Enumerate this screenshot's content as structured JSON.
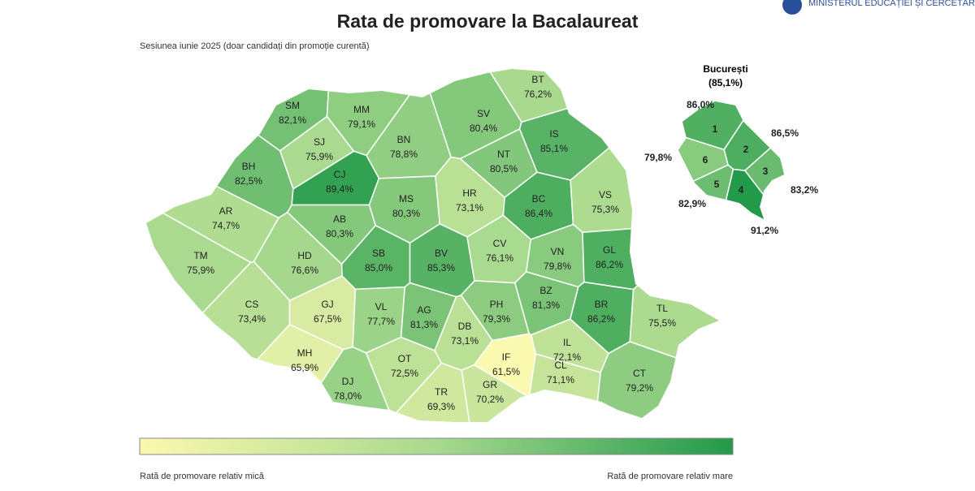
{
  "header": {
    "title": "Rata de promovare la Bacalaureat",
    "subtitle": "Sesiunea iunie 2025 (doar candidați din promoție curentă)",
    "logo_text": "MINISTERUL EDUCAȚIEI ȘI CERCETĂRII"
  },
  "counties": [
    {
      "code": "SM",
      "value": 82.1,
      "label": "82,1%"
    },
    {
      "code": "MM",
      "value": 79.1,
      "label": "79,1%"
    },
    {
      "code": "BT",
      "value": 76.2,
      "label": "76,2%"
    },
    {
      "code": "SV",
      "value": 80.4,
      "label": "80,4%"
    },
    {
      "code": "BN",
      "value": 78.8,
      "label": "78,8%"
    },
    {
      "code": "SJ",
      "value": 75.9,
      "label": "75,9%"
    },
    {
      "code": "IS",
      "value": 85.1,
      "label": "85,1%"
    },
    {
      "code": "BH",
      "value": 82.5,
      "label": "82,5%"
    },
    {
      "code": "CJ",
      "value": 89.4,
      "label": "89,4%"
    },
    {
      "code": "NT",
      "value": 80.5,
      "label": "80,5%"
    },
    {
      "code": "HR",
      "value": 73.1,
      "label": "73,1%"
    },
    {
      "code": "BC",
      "value": 86.4,
      "label": "86,4%"
    },
    {
      "code": "VS",
      "value": 75.3,
      "label": "75,3%"
    },
    {
      "code": "MS",
      "value": 80.3,
      "label": "80,3%"
    },
    {
      "code": "AR",
      "value": 74.7,
      "label": "74,7%"
    },
    {
      "code": "AB",
      "value": 80.3,
      "label": "80,3%"
    },
    {
      "code": "TM",
      "value": 75.9,
      "label": "75,9%"
    },
    {
      "code": "HD",
      "value": 76.6,
      "label": "76,6%"
    },
    {
      "code": "SB",
      "value": 85.0,
      "label": "85,0%"
    },
    {
      "code": "BV",
      "value": 85.3,
      "label": "85,3%"
    },
    {
      "code": "CV",
      "value": 76.1,
      "label": "76,1%"
    },
    {
      "code": "VN",
      "value": 79.8,
      "label": "79,8%"
    },
    {
      "code": "GL",
      "value": 86.2,
      "label": "86,2%"
    },
    {
      "code": "CS",
      "value": 73.4,
      "label": "73,4%"
    },
    {
      "code": "GJ",
      "value": 67.5,
      "label": "67,5%"
    },
    {
      "code": "VL",
      "value": 77.7,
      "label": "77,7%"
    },
    {
      "code": "AG",
      "value": 81.3,
      "label": "81,3%"
    },
    {
      "code": "BZ",
      "value": 81.3,
      "label": "81,3%"
    },
    {
      "code": "BR",
      "value": 86.2,
      "label": "86,2%"
    },
    {
      "code": "PH",
      "value": 79.3,
      "label": "79,3%"
    },
    {
      "code": "DB",
      "value": 73.1,
      "label": "73,1%"
    },
    {
      "code": "TL",
      "value": 75.5,
      "label": "75,5%"
    },
    {
      "code": "MH",
      "value": 65.9,
      "label": "65,9%"
    },
    {
      "code": "OT",
      "value": 72.5,
      "label": "72,5%"
    },
    {
      "code": "IF",
      "value": 61.5,
      "label": "61,5%"
    },
    {
      "code": "IL",
      "value": 72.1,
      "label": "72,1%"
    },
    {
      "code": "DJ",
      "value": 78.0,
      "label": "78,0%"
    },
    {
      "code": "TR",
      "value": 69.3,
      "label": "69,3%"
    },
    {
      "code": "GR",
      "value": 70.2,
      "label": "70,2%"
    },
    {
      "code": "CL",
      "value": 71.1,
      "label": "71,1%"
    },
    {
      "code": "CT",
      "value": 79.2,
      "label": "79,2%"
    }
  ],
  "bucharest": {
    "name": "București",
    "value": 85.1,
    "label": "(85,1%)",
    "sectors": [
      {
        "number": 1,
        "value": 86.0,
        "label": "86,0%"
      },
      {
        "number": 2,
        "value": 86.5,
        "label": "86,5%"
      },
      {
        "number": 3,
        "value": 83.2,
        "label": "83,2%"
      },
      {
        "number": 4,
        "value": 91.2,
        "label": "91,2%"
      },
      {
        "number": 5,
        "value": 82.9,
        "label": "82,9%"
      },
      {
        "number": 6,
        "value": 79.8,
        "label": "79,8%"
      }
    ]
  },
  "legend": {
    "low": "Rată de promovare relativ mică",
    "high": "Rată de promovare relativ mare"
  }
}
